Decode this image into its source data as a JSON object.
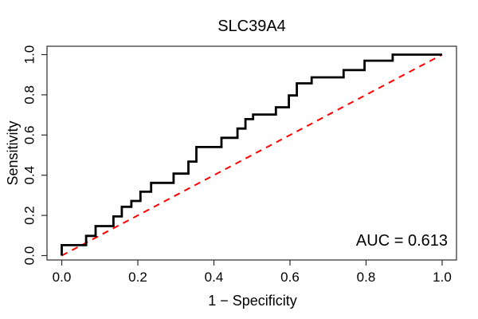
{
  "chart_data": {
    "type": "line",
    "subtype": "roc-curve",
    "title": "SLC39A4",
    "xlabel": "1 − Specificity",
    "ylabel": "Sensitivity",
    "annotation": "AUC = 0.613",
    "auc_value": 0.613,
    "xlim": [
      0.0,
      1.0
    ],
    "ylim": [
      0.0,
      1.0
    ],
    "grid": false,
    "x_ticks": [
      0.0,
      0.2,
      0.4,
      0.6,
      0.8,
      1.0
    ],
    "x_tick_labels": [
      "0.0",
      "0.2",
      "0.4",
      "0.6",
      "0.8",
      "1.0"
    ],
    "y_ticks": [
      0.0,
      0.2,
      0.4,
      0.6,
      0.8,
      1.0
    ],
    "y_tick_labels": [
      "0.0",
      "0.2",
      "0.4",
      "0.6",
      "0.8",
      "1.0"
    ],
    "colors": {
      "roc_curve": "#000000",
      "chance_line": "#ff0000",
      "axis": "#2b2b2b",
      "text": "#000000",
      "background": "#ffffff"
    },
    "series": [
      {
        "name": "ROC curve",
        "style": "solid-step",
        "color": "#000000",
        "points": [
          [
            0.0,
            0.0
          ],
          [
            0.0,
            0.052
          ],
          [
            0.064,
            0.052
          ],
          [
            0.064,
            0.098
          ],
          [
            0.089,
            0.098
          ],
          [
            0.089,
            0.147
          ],
          [
            0.136,
            0.147
          ],
          [
            0.136,
            0.195
          ],
          [
            0.158,
            0.195
          ],
          [
            0.158,
            0.243
          ],
          [
            0.183,
            0.243
          ],
          [
            0.183,
            0.272
          ],
          [
            0.207,
            0.272
          ],
          [
            0.207,
            0.318
          ],
          [
            0.235,
            0.318
          ],
          [
            0.235,
            0.362
          ],
          [
            0.294,
            0.362
          ],
          [
            0.294,
            0.408
          ],
          [
            0.333,
            0.408
          ],
          [
            0.333,
            0.468
          ],
          [
            0.354,
            0.468
          ],
          [
            0.354,
            0.54
          ],
          [
            0.42,
            0.54
          ],
          [
            0.42,
            0.586
          ],
          [
            0.462,
            0.586
          ],
          [
            0.462,
            0.632
          ],
          [
            0.483,
            0.632
          ],
          [
            0.483,
            0.679
          ],
          [
            0.503,
            0.679
          ],
          [
            0.503,
            0.702
          ],
          [
            0.563,
            0.702
          ],
          [
            0.563,
            0.738
          ],
          [
            0.597,
            0.738
          ],
          [
            0.597,
            0.797
          ],
          [
            0.618,
            0.797
          ],
          [
            0.618,
            0.857
          ],
          [
            0.657,
            0.857
          ],
          [
            0.657,
            0.887
          ],
          [
            0.741,
            0.887
          ],
          [
            0.741,
            0.923
          ],
          [
            0.796,
            0.923
          ],
          [
            0.796,
            0.97
          ],
          [
            0.87,
            0.97
          ],
          [
            0.87,
            1.0
          ],
          [
            1.0,
            1.0
          ]
        ]
      },
      {
        "name": "chance diagonal",
        "style": "dashed",
        "color": "#ff0000",
        "points": [
          [
            0.0,
            0.0
          ],
          [
            1.0,
            1.0
          ]
        ]
      }
    ]
  }
}
